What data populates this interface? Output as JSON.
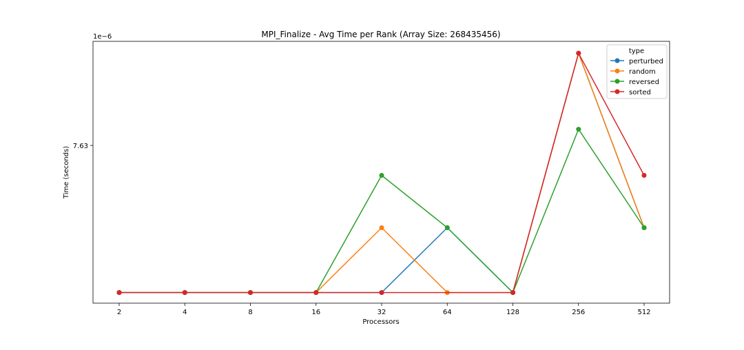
{
  "chart_data": {
    "type": "line",
    "title": "MPI_Finalize - Avg Time per Rank (Array Size: 268435456)",
    "xlabel": "Processors",
    "ylabel": "Time (seconds)",
    "y_offset_label": "1e−6",
    "categories": [
      "2",
      "4",
      "8",
      "16",
      "32",
      "64",
      "128",
      "256",
      "512"
    ],
    "y_ticks": [
      {
        "value": 7.63e-06,
        "label": "7.63"
      }
    ],
    "ylim": [
      5.1e-06,
      9.3e-06
    ],
    "grid": false,
    "legend": {
      "title": "type",
      "position": "top-right"
    },
    "series": [
      {
        "name": "perturbed",
        "color": "#1f77b4",
        "values": [
          5.27e-06,
          5.27e-06,
          5.27e-06,
          5.27e-06,
          5.27e-06,
          6.31e-06,
          5.27e-06,
          9.11e-06,
          6.31e-06
        ]
      },
      {
        "name": "random",
        "color": "#ff7f0e",
        "values": [
          5.27e-06,
          5.27e-06,
          5.27e-06,
          5.27e-06,
          6.31e-06,
          5.27e-06,
          5.27e-06,
          9.11e-06,
          6.31e-06
        ]
      },
      {
        "name": "reversed",
        "color": "#2ca02c",
        "values": [
          5.27e-06,
          5.27e-06,
          5.27e-06,
          5.27e-06,
          7.15e-06,
          6.31e-06,
          5.27e-06,
          7.89e-06,
          6.31e-06
        ]
      },
      {
        "name": "sorted",
        "color": "#d62728",
        "values": [
          5.27e-06,
          5.27e-06,
          5.27e-06,
          5.27e-06,
          5.27e-06,
          null,
          5.27e-06,
          9.11e-06,
          7.15e-06
        ]
      }
    ]
  }
}
